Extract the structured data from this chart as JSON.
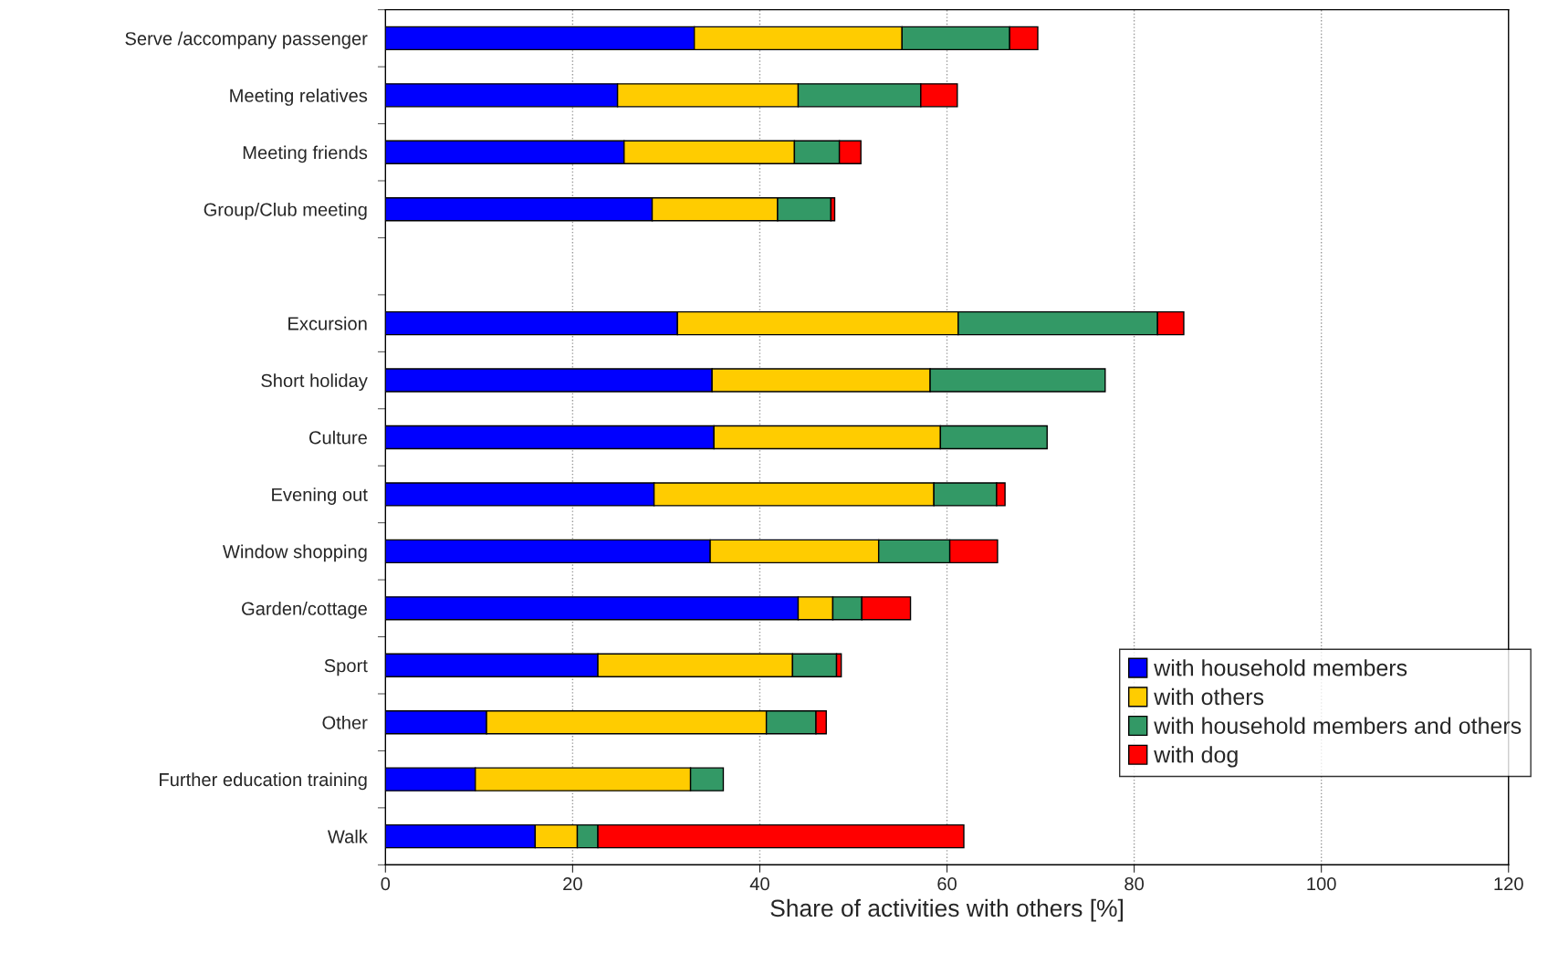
{
  "chart_data": {
    "type": "bar",
    "orientation": "horizontal",
    "stacked": true,
    "xlabel": "Share of activities with others [%]",
    "categories": [
      "Serve /accompany passenger",
      "Meeting relatives",
      "Meeting friends",
      "Group/Club meeting",
      null,
      "Excursion",
      "Short holiday",
      "Culture",
      "Evening out",
      "Window shopping",
      "Garden/cottage",
      "Sport",
      "Other",
      "Further education training",
      "Walk"
    ],
    "series": [
      {
        "name": "with household members",
        "color": "#0000ff",
        "values": [
          33.0,
          24.8,
          25.5,
          28.5,
          null,
          31.2,
          34.9,
          35.1,
          28.7,
          34.7,
          44.1,
          22.7,
          10.8,
          9.6,
          16.0
        ]
      },
      {
        "name": "with others",
        "color": "#ffcc00",
        "values": [
          22.2,
          19.3,
          18.2,
          13.4,
          null,
          30.0,
          23.3,
          24.2,
          29.9,
          18.0,
          3.7,
          20.8,
          29.9,
          23.0,
          4.5
        ]
      },
      {
        "name": "with household members and others",
        "color": "#339966",
        "values": [
          11.5,
          13.1,
          4.8,
          5.7,
          null,
          21.3,
          18.7,
          11.4,
          6.7,
          7.6,
          3.1,
          4.7,
          5.3,
          3.5,
          2.2
        ]
      },
      {
        "name": "with dog",
        "color": "#ff0000",
        "values": [
          3.0,
          3.9,
          2.3,
          0.4,
          null,
          2.8,
          null,
          null,
          0.9,
          5.1,
          5.2,
          0.5,
          1.1,
          null,
          39.1
        ]
      }
    ],
    "xlim": [
      0,
      120
    ],
    "xticks": [
      0,
      20,
      40,
      60,
      80,
      100,
      120
    ],
    "grid": "x",
    "legend": "bottom right"
  }
}
